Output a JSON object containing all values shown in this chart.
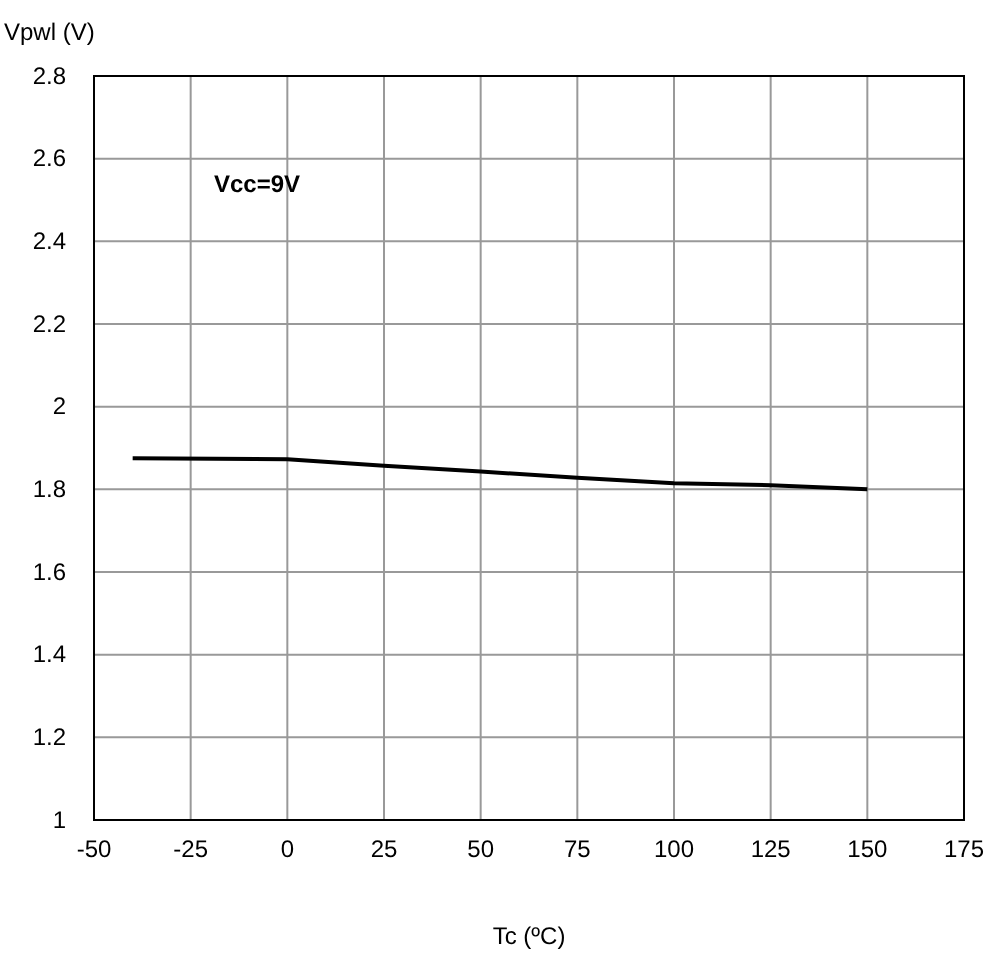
{
  "chart_data": {
    "type": "line",
    "xlabel": "Tc (ºC)",
    "ylabel": "Vpwl (V)",
    "annotations": [
      "Vcc=9V"
    ],
    "x": [
      -40,
      0,
      25,
      50,
      75,
      100,
      125,
      150
    ],
    "series": [
      {
        "color": "#000000",
        "values": [
          1.875,
          1.873,
          1.857,
          1.843,
          1.828,
          1.815,
          1.81,
          1.8
        ]
      }
    ],
    "xlim": [
      -50,
      175
    ],
    "xticks": [
      -50,
      -25,
      0,
      25,
      50,
      75,
      100,
      125,
      150,
      175
    ],
    "ylim": [
      1,
      2.8
    ],
    "yticks": [
      1,
      1.2,
      1.4,
      1.6,
      1.8,
      2,
      2.2,
      2.4,
      2.6,
      2.8
    ],
    "grid": true,
    "marker": "none",
    "line_style": "solid"
  }
}
